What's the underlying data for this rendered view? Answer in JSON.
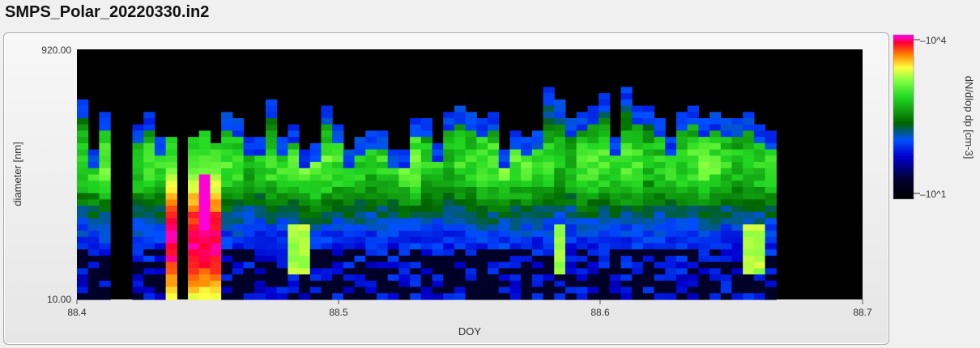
{
  "window": {
    "title": "SMPS_Polar_20220330.in2"
  },
  "chart_data": {
    "type": "heatmap",
    "xlabel": "DOY",
    "ylabel": "diameter [nm]",
    "xlim": [
      88.4,
      88.7
    ],
    "ylim": [
      10.0,
      920.0
    ],
    "y_scale": "log",
    "x_ticks": [
      "88.4",
      "88.5",
      "88.6",
      "88.7"
    ],
    "y_ticks": [
      "920.00",
      "10.00"
    ],
    "colorbar": {
      "label": "dN/dlop dp [cm-3]",
      "scale": "log",
      "ticks": [
        "10^4",
        "10^1"
      ]
    },
    "data_extent_x": [
      88.4,
      88.667
    ],
    "grid": false,
    "background": "#000000",
    "colors": {
      "panel_bg": "#ececec",
      "plot_bg": "#000000"
    }
  }
}
